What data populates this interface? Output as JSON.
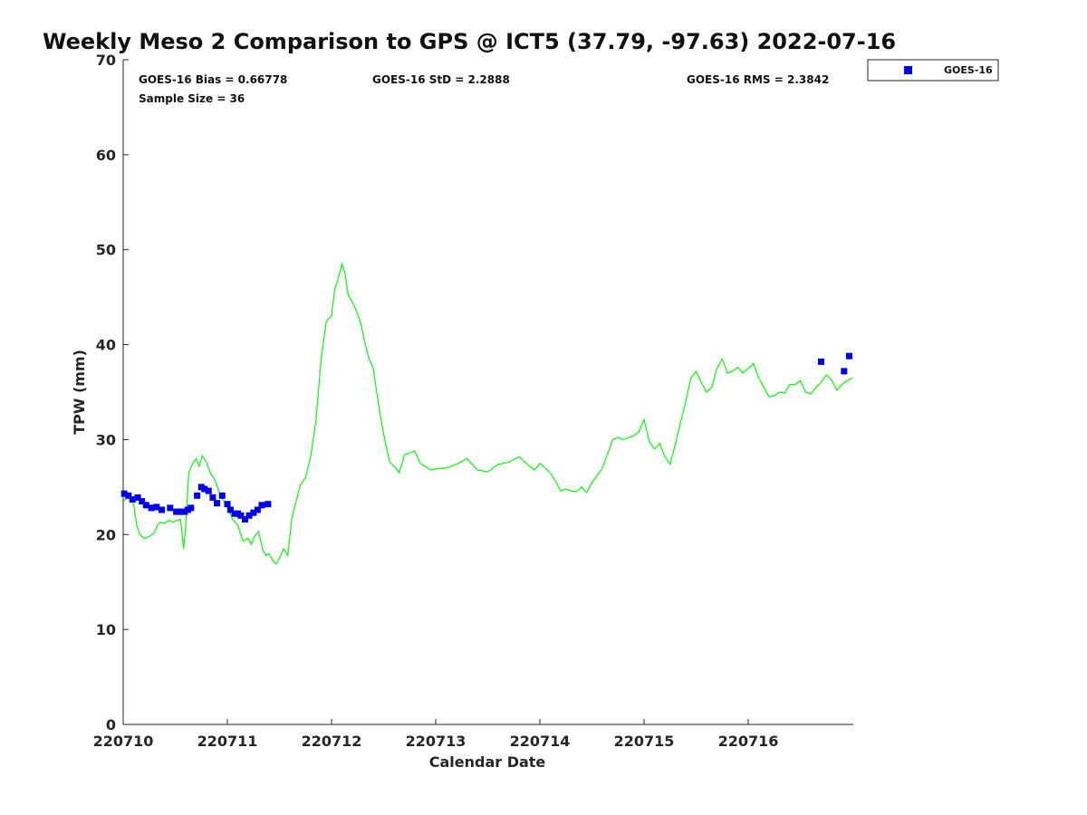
{
  "chart_data": {
    "type": "line",
    "title": "Weekly Meso 2 Comparison to GPS @ ICT5 (37.79, -97.63) 2022-07-16",
    "xlabel": "Calendar Date",
    "ylabel": "TPW (mm)",
    "ylim": [
      0,
      70
    ],
    "yticks": [
      "0",
      "10",
      "20",
      "30",
      "40",
      "50",
      "60",
      "70"
    ],
    "xlim": [
      0,
      7
    ],
    "xtick_labels": [
      "220710",
      "220711",
      "220712",
      "220713",
      "220714",
      "220715",
      "220716"
    ],
    "grid": false,
    "legend_position": "top-right",
    "stats": {
      "bias": "GOES-16 Bias = 0.66778",
      "std": "GOES-16 StD = 2.2888",
      "rms": "GOES-16 RMS = 2.3842",
      "sample": "Sample Size = 36"
    },
    "series": [
      {
        "name": "",
        "style": "line",
        "color": "#00ff00",
        "x": [
          0,
          0.05,
          0.1,
          0.13,
          0.16,
          0.2,
          0.25,
          0.3,
          0.33,
          0.36,
          0.4,
          0.44,
          0.48,
          0.52,
          0.55,
          0.58,
          0.6,
          0.63,
          0.66,
          0.7,
          0.73,
          0.76,
          0.8,
          0.84,
          0.88,
          0.92,
          0.95,
          1.0,
          1.05,
          1.1,
          1.15,
          1.2,
          1.23,
          1.26,
          1.3,
          1.34,
          1.37,
          1.4,
          1.44,
          1.47,
          1.5,
          1.54,
          1.58,
          1.62,
          1.66,
          1.7,
          1.75,
          1.8,
          1.85,
          1.9,
          1.95,
          2.0,
          2.03,
          2.06,
          2.1,
          2.13,
          2.16,
          2.2,
          2.24,
          2.28,
          2.32,
          2.36,
          2.4,
          2.44,
          2.48,
          2.52,
          2.56,
          2.6,
          2.65,
          2.7,
          2.75,
          2.8,
          2.85,
          2.9,
          2.95,
          3.0,
          3.1,
          3.2,
          3.3,
          3.4,
          3.5,
          3.6,
          3.7,
          3.8,
          3.9,
          3.95,
          4.0,
          4.05,
          4.1,
          4.15,
          4.2,
          4.25,
          4.3,
          4.35,
          4.4,
          4.45,
          4.5,
          4.55,
          4.6,
          4.65,
          4.7,
          4.75,
          4.8,
          4.85,
          4.9,
          4.95,
          5.0,
          5.05,
          5.1,
          5.15,
          5.2,
          5.25,
          5.3,
          5.35,
          5.4,
          5.45,
          5.5,
          5.55,
          5.6,
          5.65,
          5.7,
          5.75,
          5.8,
          5.85,
          5.9,
          5.95,
          6.0,
          6.05,
          6.1,
          6.15,
          6.2,
          6.25,
          6.3,
          6.35,
          6.4,
          6.45,
          6.5,
          6.55,
          6.6,
          6.65,
          6.7,
          6.75,
          6.8,
          6.85,
          6.9,
          6.95,
          7.0
        ],
        "y": [
          23.5,
          24.0,
          23.2,
          21.0,
          20.0,
          19.6,
          19.8,
          20.2,
          21.0,
          21.3,
          21.2,
          21.5,
          21.3,
          21.5,
          21.6,
          18.5,
          20.8,
          26.5,
          27.3,
          28.0,
          27.2,
          28.3,
          27.6,
          26.4,
          25.8,
          24.5,
          23.8,
          23.0,
          21.6,
          21.0,
          19.3,
          19.6,
          19.0,
          19.8,
          20.3,
          18.4,
          17.8,
          18.0,
          17.2,
          16.9,
          17.5,
          18.5,
          17.8,
          21.8,
          23.5,
          25.2,
          26.0,
          28.2,
          32.0,
          38.5,
          42.5,
          43.0,
          45.8,
          46.8,
          48.5,
          47.5,
          45.2,
          44.5,
          43.5,
          42.3,
          40.2,
          38.5,
          37.5,
          34.5,
          31.8,
          29.5,
          27.6,
          27.2,
          26.5,
          28.4,
          28.6,
          28.8,
          27.5,
          27.2,
          26.8,
          26.9,
          27.0,
          27.4,
          28.0,
          26.8,
          26.6,
          27.4,
          27.6,
          28.2,
          27.2,
          26.8,
          27.5,
          27.0,
          26.5,
          25.6,
          24.6,
          24.8,
          24.6,
          24.5,
          25.0,
          24.4,
          25.5,
          26.2,
          27.0,
          28.5,
          30.0,
          30.2,
          30.0,
          30.2,
          30.4,
          30.8,
          32.1,
          29.8,
          29.0,
          29.6,
          28.2,
          27.4,
          29.5,
          31.8,
          34.0,
          36.5,
          37.2,
          36.0,
          35.0,
          35.5,
          37.5,
          38.5,
          37.0,
          37.2,
          37.6,
          37.0,
          37.5,
          38.0,
          36.5,
          35.5,
          34.5,
          34.6,
          35.0,
          34.9,
          35.8,
          35.8,
          36.2,
          35.0,
          34.8,
          35.5,
          36.0,
          36.8,
          36.3,
          35.2,
          35.8,
          36.2,
          36.5
        ]
      },
      {
        "name": "GOES-16",
        "style": "marker",
        "color": "#0000ee",
        "x": [
          0.01,
          0.05,
          0.09,
          0.14,
          0.18,
          0.22,
          0.27,
          0.32,
          0.37,
          0.45,
          0.51,
          0.55,
          0.59,
          0.62,
          0.65,
          0.71,
          0.75,
          0.78,
          0.82,
          0.86,
          0.9,
          0.95,
          1.0,
          1.03,
          1.07,
          1.1,
          1.13,
          1.17,
          1.21,
          1.25,
          1.29,
          1.33,
          1.39,
          6.7,
          6.92,
          6.97
        ],
        "y": [
          24.3,
          24.1,
          23.7,
          23.9,
          23.5,
          23.1,
          22.8,
          22.9,
          22.6,
          22.8,
          22.4,
          22.4,
          22.4,
          22.6,
          22.8,
          24.1,
          25.0,
          24.8,
          24.6,
          23.9,
          23.3,
          24.1,
          23.2,
          22.6,
          22.2,
          22.2,
          22.0,
          21.6,
          22.0,
          22.3,
          22.6,
          23.1,
          23.2,
          38.2,
          37.2,
          38.8
        ]
      }
    ]
  }
}
